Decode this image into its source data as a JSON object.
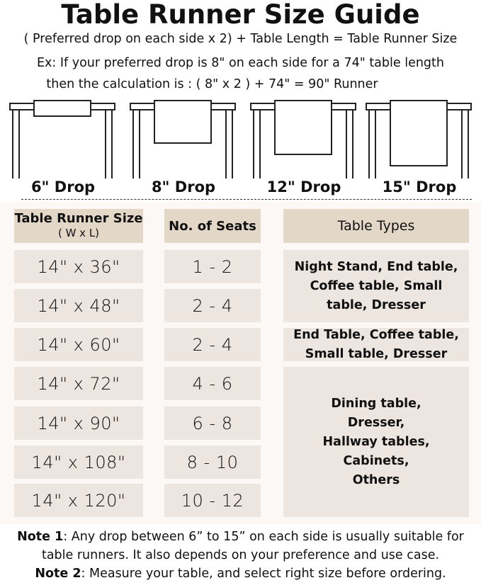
{
  "title": "Table Runner Size Guide",
  "formula": "( Preferred drop on each side x 2) + Table Length = Table Runner Size",
  "example_line1": "Ex: If your preferred drop is 8\" on each side for a 74\" table length",
  "example_line2": "then the calculation is : ( 8\" x 2 ) + 74\" = 90\" Runner",
  "drops": [
    "6\" Drop",
    "8\" Drop",
    "12\" Drop",
    "15\" Drop"
  ],
  "headers": {
    "size": "Table Runner Size",
    "size_sub": "( W x L)",
    "seats": "No. of Seats",
    "types": "Table Types"
  },
  "rows": [
    {
      "size": "14\" x 36\"",
      "seats": "1 - 2"
    },
    {
      "size": "14\" x 48\"",
      "seats": "2 - 4"
    },
    {
      "size": "14\" x 60\"",
      "seats": "2 - 4"
    },
    {
      "size": "14\" x 72\"",
      "seats": "4 - 6"
    },
    {
      "size": "14\" x 90\"",
      "seats": "6 - 8"
    },
    {
      "size": "14\" x 108\"",
      "seats": "8 - 10"
    },
    {
      "size": "14\" x 120\"",
      "seats": "10 - 12"
    }
  ],
  "table_types": [
    "Night Stand, End table, Coffee table, Small table, Dresser",
    "End Table, Coffee table, Small table, Dresser",
    "Dining table, Dresser, Hallway tables, Cabinets, Others"
  ],
  "notes": {
    "note1_label": "Note 1",
    "note1_text": ": Any drop between 6” to 15” on each side is usually suitable for table runners. It also depends on your preference and use case.",
    "note2_label": "Note 2",
    "note2_text": ": Measure your table, and select right size before ordering."
  },
  "colors": {
    "header_cell": "#e3d7c8",
    "body_cell": "#ede5e0",
    "panel": "#fbf8f6"
  }
}
